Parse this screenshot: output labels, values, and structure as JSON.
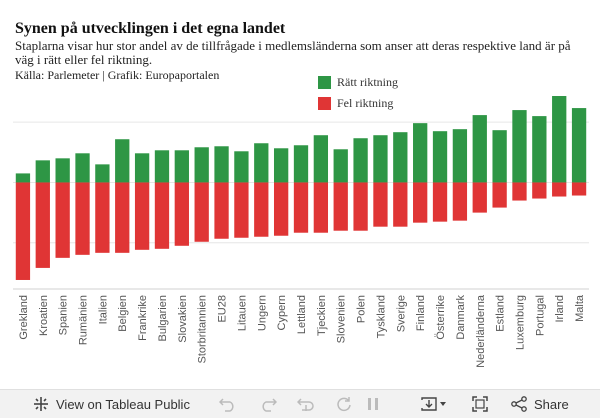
{
  "header": {
    "title": "Synen på utvecklingen i det egna landet",
    "subtitle": "Staplarna visar hur stor andel av de tillfrågade i medlemsländerna som anser att deras respektive land är på väg i rätt eller fel riktning.",
    "source": "Källa: Parlemeter | Grafik: Europaportalen"
  },
  "chart_data": {
    "type": "bar",
    "stacked": "diverging",
    "categories": [
      "Grekland",
      "Kroatien",
      "Spanien",
      "Rumänien",
      "Italien",
      "Belgien",
      "Frankrike",
      "Bulgarien",
      "Slovakien",
      "Storbritannien",
      "EU28",
      "Litauen",
      "Ungern",
      "Cypern",
      "Lettland",
      "Tjeckien",
      "Slovenien",
      "Polen",
      "Tyskland",
      "Sverige",
      "Finland",
      "Österrike",
      "Danmark",
      "Nederländerna",
      "Estland",
      "Luxemburg",
      "Portugal",
      "Irland",
      "Malta"
    ],
    "series": [
      {
        "name": "Rätt riktning",
        "color": "#2e9645",
        "values": [
          9,
          22,
          24,
          29,
          18,
          43,
          29,
          32,
          32,
          35,
          36,
          31,
          39,
          34,
          37,
          47,
          33,
          44,
          47,
          50,
          59,
          51,
          53,
          67,
          52,
          72,
          66,
          86,
          74
        ]
      },
      {
        "name": "Fel riktning",
        "color": "#e03535",
        "values": [
          -97,
          -85,
          -75,
          -72,
          -70,
          -70,
          -67,
          -66,
          -63,
          -59,
          -56,
          -55,
          -54,
          -53,
          -50,
          -50,
          -48,
          -48,
          -44,
          -44,
          -40,
          -39,
          -38,
          -30,
          -25,
          -18,
          -16,
          -14,
          -13
        ]
      }
    ],
    "legend": [
      "Rätt riktning",
      "Fel riktning"
    ],
    "legend_position": "top-right",
    "ylim": [
      -104,
      87
    ],
    "gridlines": [
      -60,
      0,
      60
    ],
    "xlabel": "",
    "ylabel": ""
  },
  "toolbar": {
    "view_label": "View on Tableau Public",
    "share_label": "Share"
  },
  "colors": {
    "positive": "#2e9645",
    "negative": "#e03535",
    "grid": "#e6e6e6"
  }
}
